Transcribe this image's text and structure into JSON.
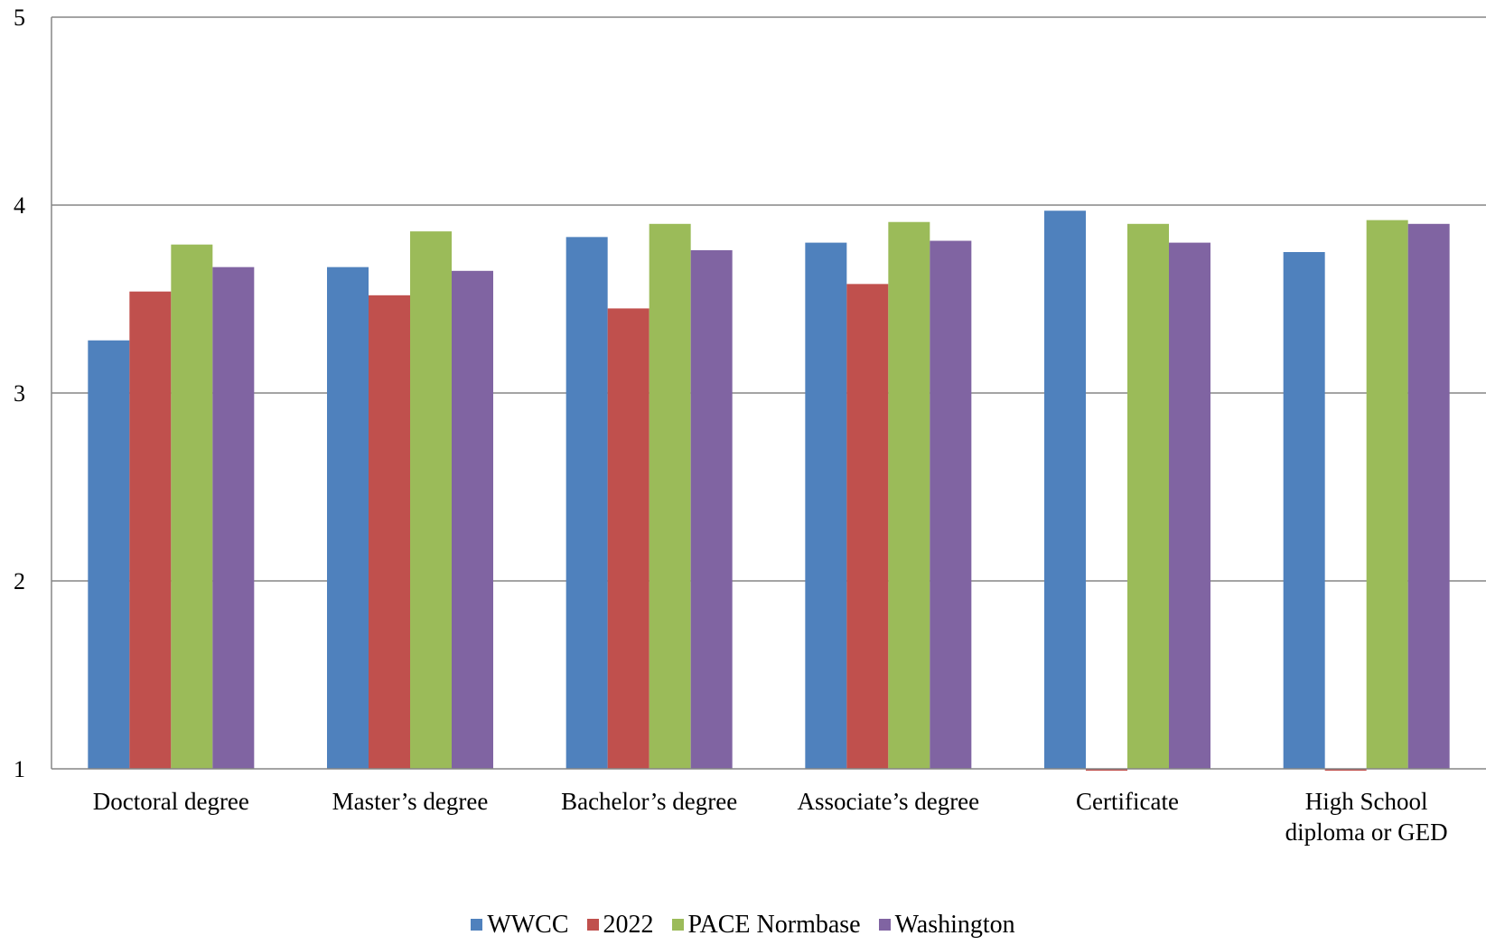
{
  "chart_data": {
    "type": "bar",
    "title": "",
    "xlabel": "",
    "ylabel": "",
    "ylim": [
      1,
      5
    ],
    "yticks": [
      "1",
      "2",
      "3",
      "4",
      "5"
    ],
    "grid": true,
    "legend_position": "bottom",
    "categories": [
      [
        "Doctoral degree"
      ],
      [
        "Master’s degree"
      ],
      [
        "Bachelor’s degree"
      ],
      [
        "Associate’s degree"
      ],
      [
        "Certificate"
      ],
      [
        "High School",
        "diploma or GED"
      ]
    ],
    "series": [
      {
        "name": "WWCC",
        "color": "#4F81BD",
        "values": [
          3.28,
          3.67,
          3.83,
          3.8,
          3.97,
          3.75
        ]
      },
      {
        "name": "2022",
        "color": "#C0504D",
        "values": [
          3.54,
          3.52,
          3.45,
          3.58,
          0.99,
          0.99
        ]
      },
      {
        "name": "PACE Normbase",
        "color": "#9BBB59",
        "values": [
          3.79,
          3.86,
          3.9,
          3.91,
          3.9,
          3.92
        ]
      },
      {
        "name": "Washington",
        "color": "#8064A2",
        "values": [
          3.67,
          3.65,
          3.76,
          3.81,
          3.8,
          3.9
        ]
      }
    ]
  }
}
